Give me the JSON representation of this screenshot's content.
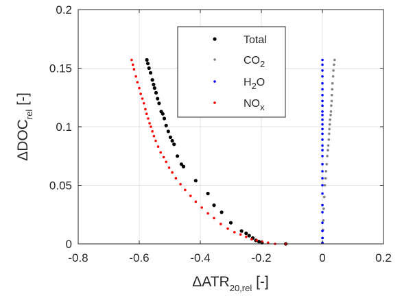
{
  "chart_data": {
    "type": "scatter",
    "xlabel": {
      "prefix": "ΔATR",
      "sub": "20,rel",
      "suffix": " [-]"
    },
    "ylabel": {
      "prefix": "ΔDOC",
      "sub": "rel",
      "suffix": " [-]"
    },
    "xlim": [
      -0.8,
      0.2
    ],
    "ylim": [
      0,
      0.2
    ],
    "xticks": [
      -0.8,
      -0.6,
      -0.4,
      -0.2,
      0,
      0.2
    ],
    "yticks": [
      0,
      0.05,
      0.1,
      0.15,
      0.2
    ],
    "xtick_labels": [
      "-0.8",
      "-0.6",
      "-0.4",
      "-0.2",
      "0",
      "0.2"
    ],
    "ytick_labels": [
      "0",
      "0.05",
      "0.1",
      "0.15",
      "0.2"
    ],
    "grid": true,
    "legend_placement": "top-center",
    "series": [
      {
        "name": "Total",
        "legend": {
          "main": "Total",
          "sub": ""
        },
        "color": "#000000",
        "marker_size": "large",
        "points": [
          [
            -0.575,
            0.157
          ],
          [
            -0.572,
            0.154
          ],
          [
            -0.568,
            0.15
          ],
          [
            -0.563,
            0.146
          ],
          [
            -0.557,
            0.14
          ],
          [
            -0.553,
            0.136
          ],
          [
            -0.55,
            0.133
          ],
          [
            -0.545,
            0.129
          ],
          [
            -0.54,
            0.124
          ],
          [
            -0.535,
            0.12
          ],
          [
            -0.528,
            0.113
          ],
          [
            -0.523,
            0.111
          ],
          [
            -0.518,
            0.107
          ],
          [
            -0.512,
            0.101
          ],
          [
            -0.505,
            0.096
          ],
          [
            -0.498,
            0.091
          ],
          [
            -0.492,
            0.088
          ],
          [
            -0.486,
            0.085
          ],
          [
            -0.475,
            0.075
          ],
          [
            -0.462,
            0.068
          ],
          [
            -0.455,
            0.066
          ],
          [
            -0.415,
            0.054
          ],
          [
            -0.375,
            0.043
          ],
          [
            -0.355,
            0.033
          ],
          [
            -0.33,
            0.027
          ],
          [
            -0.3,
            0.018
          ],
          [
            -0.265,
            0.011
          ],
          [
            -0.25,
            0.009
          ],
          [
            -0.24,
            0.007
          ],
          [
            -0.228,
            0.005
          ],
          [
            -0.218,
            0.003
          ],
          [
            -0.208,
            0.002
          ],
          [
            -0.198,
            0.001
          ],
          [
            -0.12,
            0.0
          ]
        ]
      },
      {
        "name": "CO2",
        "legend": {
          "main": "CO",
          "sub": "2"
        },
        "color": "#808080",
        "marker_size": "small",
        "points": [
          [
            0.04,
            0.157
          ],
          [
            0.038,
            0.153
          ],
          [
            0.036,
            0.148
          ],
          [
            0.035,
            0.143
          ],
          [
            0.033,
            0.137
          ],
          [
            0.032,
            0.132
          ],
          [
            0.031,
            0.127
          ],
          [
            0.03,
            0.122
          ],
          [
            0.029,
            0.118
          ],
          [
            0.028,
            0.113
          ],
          [
            0.027,
            0.11
          ],
          [
            0.025,
            0.106
          ],
          [
            0.024,
            0.102
          ],
          [
            0.023,
            0.098
          ],
          [
            0.022,
            0.094
          ],
          [
            0.021,
            0.089
          ],
          [
            0.019,
            0.084
          ],
          [
            0.018,
            0.08
          ],
          [
            0.016,
            0.075
          ],
          [
            0.014,
            0.068
          ],
          [
            0.012,
            0.062
          ],
          [
            0.01,
            0.056
          ],
          [
            0.008,
            0.05
          ],
          [
            0.006,
            0.04
          ],
          [
            0.004,
            0.03
          ],
          [
            0.003,
            0.02
          ],
          [
            0.002,
            0.012
          ],
          [
            0.001,
            0.005
          ],
          [
            0.0,
            0.001
          ]
        ]
      },
      {
        "name": "H2O",
        "legend": {
          "main": "H",
          "sub": "2",
          "after": "O"
        },
        "color": "#0000ff",
        "marker_size": "small",
        "points": [
          [
            0.0,
            0.157
          ],
          [
            0.0,
            0.153
          ],
          [
            0.0,
            0.148
          ],
          [
            0.0,
            0.143
          ],
          [
            0.0,
            0.137
          ],
          [
            0.0,
            0.132
          ],
          [
            0.0,
            0.127
          ],
          [
            0.0,
            0.122
          ],
          [
            0.0,
            0.118
          ],
          [
            0.0,
            0.113
          ],
          [
            0.0,
            0.11
          ],
          [
            0.0,
            0.106
          ],
          [
            0.0,
            0.102
          ],
          [
            0.0,
            0.098
          ],
          [
            0.0,
            0.094
          ],
          [
            0.0,
            0.089
          ],
          [
            0.0,
            0.084
          ],
          [
            0.0,
            0.08
          ],
          [
            0.0,
            0.075
          ],
          [
            0.0,
            0.068
          ],
          [
            0.0,
            0.062
          ],
          [
            0.0,
            0.056
          ],
          [
            0.0,
            0.05
          ],
          [
            0.0,
            0.043
          ],
          [
            0.0,
            0.033
          ],
          [
            0.0,
            0.027
          ],
          [
            0.0,
            0.018
          ],
          [
            0.0,
            0.011
          ],
          [
            0.0,
            0.005
          ],
          [
            0.0,
            0.001
          ]
        ]
      },
      {
        "name": "NOx",
        "legend": {
          "main": "NO",
          "sub": "x"
        },
        "color": "#ff0000",
        "marker_size": "small",
        "points": [
          [
            -0.625,
            0.157
          ],
          [
            -0.621,
            0.153
          ],
          [
            -0.617,
            0.149
          ],
          [
            -0.611,
            0.143
          ],
          [
            -0.606,
            0.138
          ],
          [
            -0.6,
            0.133
          ],
          [
            -0.595,
            0.128
          ],
          [
            -0.59,
            0.124
          ],
          [
            -0.585,
            0.12
          ],
          [
            -0.58,
            0.115
          ],
          [
            -0.576,
            0.111
          ],
          [
            -0.571,
            0.107
          ],
          [
            -0.566,
            0.103
          ],
          [
            -0.562,
            0.1
          ],
          [
            -0.557,
            0.096
          ],
          [
            -0.552,
            0.092
          ],
          [
            -0.546,
            0.088
          ],
          [
            -0.538,
            0.083
          ],
          [
            -0.53,
            0.078
          ],
          [
            -0.52,
            0.074
          ],
          [
            -0.512,
            0.07
          ],
          [
            -0.502,
            0.065
          ],
          [
            -0.492,
            0.061
          ],
          [
            -0.48,
            0.056
          ],
          [
            -0.465,
            0.051
          ],
          [
            -0.45,
            0.046
          ],
          [
            -0.432,
            0.041
          ],
          [
            -0.415,
            0.036
          ],
          [
            -0.395,
            0.031
          ],
          [
            -0.375,
            0.026
          ],
          [
            -0.355,
            0.022
          ],
          [
            -0.333,
            0.017
          ],
          [
            -0.31,
            0.013
          ],
          [
            -0.288,
            0.01
          ],
          [
            -0.268,
            0.008
          ],
          [
            -0.25,
            0.006
          ],
          [
            -0.232,
            0.004
          ],
          [
            -0.215,
            0.003
          ],
          [
            -0.198,
            0.002
          ],
          [
            -0.178,
            0.001
          ],
          [
            -0.155,
            0.0
          ],
          [
            -0.12,
            0.0
          ]
        ]
      }
    ]
  }
}
